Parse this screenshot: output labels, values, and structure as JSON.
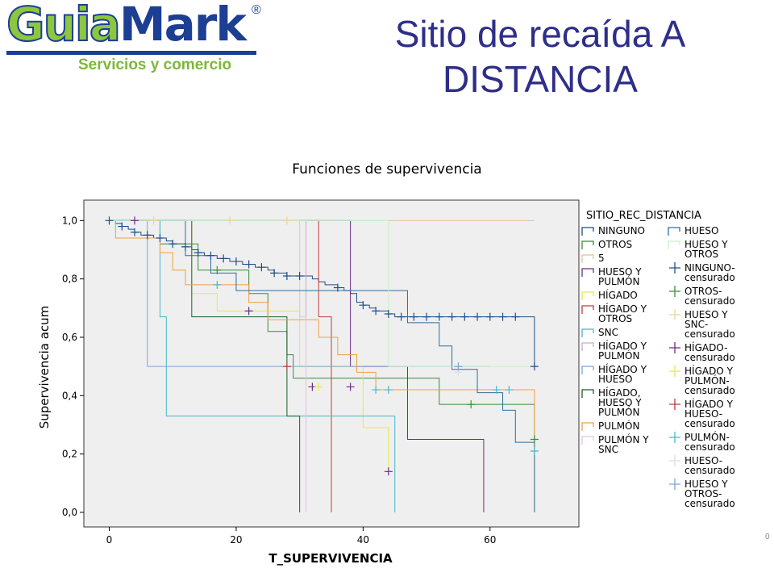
{
  "logo": {
    "text_a": "Guia",
    "text_b": "Mark",
    "registered": "®",
    "tagline": "Servicios y comercio"
  },
  "slide_title_line1": "Sitio de recaída A",
  "slide_title_line2": "DISTANCIA",
  "page_mark": "0",
  "chart_data": {
    "type": "line",
    "title": "Funciones de supervivencia",
    "xlabel": "T_SUPERVIVENCIA",
    "ylabel": "Supervivencia acum",
    "xlim": [
      -4,
      74
    ],
    "ylim": [
      -0.05,
      1.07
    ],
    "xticks": [
      0,
      20,
      40,
      60
    ],
    "yticks": [
      0.0,
      0.2,
      0.4,
      0.6,
      0.8,
      1.0
    ],
    "ytick_labels": [
      "0,0",
      "0,2",
      "0,4",
      "0,6",
      "0,8",
      "1,0"
    ],
    "grid": false,
    "legend_title": "SITIO_REC_DISTANCIA",
    "legend_position": "right",
    "series": [
      {
        "name": "NINGUNO",
        "color": "#1f4e8c",
        "width": 1,
        "steps": [
          [
            0,
            1.0
          ],
          [
            1,
            0.99
          ],
          [
            2,
            0.98
          ],
          [
            3,
            0.97
          ],
          [
            4,
            0.96
          ],
          [
            5,
            0.95
          ],
          [
            6,
            0.95
          ],
          [
            7,
            0.94
          ],
          [
            8,
            0.94
          ],
          [
            9,
            0.93
          ],
          [
            10,
            0.92
          ],
          [
            11,
            0.92
          ],
          [
            12,
            0.91
          ],
          [
            13,
            0.9
          ],
          [
            14,
            0.89
          ],
          [
            15,
            0.88
          ],
          [
            16,
            0.88
          ],
          [
            17,
            0.87
          ],
          [
            18,
            0.87
          ],
          [
            19,
            0.86
          ],
          [
            20,
            0.86
          ],
          [
            21,
            0.85
          ],
          [
            22,
            0.85
          ],
          [
            23,
            0.84
          ],
          [
            24,
            0.84
          ],
          [
            25,
            0.83
          ],
          [
            26,
            0.82
          ],
          [
            27,
            0.82
          ],
          [
            28,
            0.81
          ],
          [
            30,
            0.81
          ],
          [
            32,
            0.8
          ],
          [
            33,
            0.79
          ],
          [
            34,
            0.78
          ],
          [
            35,
            0.78
          ],
          [
            36,
            0.77
          ],
          [
            37,
            0.76
          ],
          [
            38,
            0.75
          ],
          [
            39,
            0.72
          ],
          [
            40,
            0.71
          ],
          [
            41,
            0.7
          ],
          [
            42,
            0.69
          ],
          [
            44,
            0.68
          ],
          [
            45,
            0.67
          ],
          [
            67,
            0.67
          ],
          [
            67,
            0.5
          ]
        ],
        "end": 67
      },
      {
        "name": "OTROS",
        "color": "#3b8c3b",
        "width": 1,
        "steps": [
          [
            0,
            1.0
          ],
          [
            8,
            0.92
          ],
          [
            14,
            0.83
          ],
          [
            22,
            0.75
          ],
          [
            25,
            0.62
          ],
          [
            28,
            0.54
          ],
          [
            29,
            0.46
          ],
          [
            52,
            0.37
          ],
          [
            67,
            0.25
          ]
        ],
        "end": 67
      },
      {
        "name": "5",
        "color": "#dcc3a0",
        "width": 1,
        "steps": [
          [
            0,
            1.0
          ]
        ],
        "end": 67
      },
      {
        "name": "HUESO Y PULMÓN",
        "color": "#6a2c85",
        "width": 1,
        "steps": [
          [
            0,
            1.0
          ],
          [
            38,
            0.5
          ],
          [
            47,
            0.25
          ],
          [
            59,
            0.0
          ]
        ],
        "end": 59
      },
      {
        "name": "HÍGADO",
        "color": "#e8e84a",
        "width": 1,
        "steps": [
          [
            0,
            1.0
          ],
          [
            13,
            0.75
          ],
          [
            17,
            0.69
          ],
          [
            30,
            0.5
          ],
          [
            40,
            0.29
          ],
          [
            44,
            0.14
          ]
        ],
        "end": 44
      },
      {
        "name": "HÍGADO Y OTROS",
        "color": "#c43a3a",
        "width": 1,
        "steps": [
          [
            0,
            1.0
          ],
          [
            33,
            0.67
          ],
          [
            35,
            0.0
          ]
        ],
        "end": 35
      },
      {
        "name": "SNC",
        "color": "#49b8c8",
        "width": 1,
        "steps": [
          [
            0,
            1.0
          ],
          [
            8,
            0.67
          ],
          [
            9,
            0.33
          ],
          [
            45,
            0.0
          ]
        ],
        "end": 45
      },
      {
        "name": "HÍGADO Y PULMÓN",
        "color": "#c8a8c8",
        "width": 1,
        "steps": [
          [
            0,
            1.0
          ],
          [
            31,
            0.0
          ]
        ],
        "end": 31
      },
      {
        "name": "HÍGADO Y HUESO",
        "color": "#7aa3d8",
        "width": 1,
        "steps": [
          [
            0,
            1.0
          ],
          [
            6,
            0.5
          ],
          [
            60,
            0.5
          ]
        ],
        "end": 60
      },
      {
        "name": "HÍGADO, HUESO Y PULMÓN",
        "color": "#1b5e2a",
        "width": 1,
        "steps": [
          [
            0,
            1.0
          ],
          [
            13,
            0.67
          ],
          [
            28,
            0.33
          ],
          [
            30,
            0.0
          ]
        ],
        "end": 30
      },
      {
        "name": "PULMÓN",
        "color": "#f0a040",
        "width": 1,
        "steps": [
          [
            0,
            1.0
          ],
          [
            1,
            0.94
          ],
          [
            8,
            0.89
          ],
          [
            10,
            0.83
          ],
          [
            12,
            0.78
          ],
          [
            22,
            0.72
          ],
          [
            25,
            0.66
          ],
          [
            33,
            0.6
          ],
          [
            36,
            0.54
          ],
          [
            39,
            0.48
          ],
          [
            42,
            0.42
          ],
          [
            67,
            0.42
          ],
          [
            67,
            0.0
          ]
        ],
        "end": 67
      },
      {
        "name": "PULMÓN Y SNC",
        "color": "#e0c4e0",
        "width": 1,
        "steps": [
          [
            0,
            1.0
          ],
          [
            30,
            0.67
          ],
          [
            31,
            0.0
          ]
        ],
        "end": 31
      },
      {
        "name": "HUESO",
        "color": "#2e6ea0",
        "width": 1,
        "steps": [
          [
            0,
            1.0
          ],
          [
            12,
            0.88
          ],
          [
            16,
            0.82
          ],
          [
            20,
            0.76
          ],
          [
            47,
            0.65
          ],
          [
            52,
            0.57
          ],
          [
            54,
            0.49
          ],
          [
            58,
            0.41
          ],
          [
            62,
            0.35
          ],
          [
            64,
            0.24
          ],
          [
            67,
            0.24
          ],
          [
            67,
            0.0
          ]
        ],
        "end": 67
      },
      {
        "name": "HUESO Y OTROS",
        "color": "#c8f0c8",
        "width": 1,
        "steps": [
          [
            0,
            1.0
          ],
          [
            44,
            1.0
          ],
          [
            44,
            0.5
          ],
          [
            67,
            0.5
          ]
        ],
        "end": 67
      }
    ],
    "censored": [
      {
        "name": "NINGUNO-censurado",
        "color": "#1f4e8c",
        "points": [
          [
            0,
            1.0
          ],
          [
            2,
            0.98
          ],
          [
            4,
            0.96
          ],
          [
            6,
            0.95
          ],
          [
            8,
            0.94
          ],
          [
            10,
            0.92
          ],
          [
            12,
            0.91
          ],
          [
            14,
            0.89
          ],
          [
            16,
            0.88
          ],
          [
            18,
            0.87
          ],
          [
            20,
            0.86
          ],
          [
            22,
            0.85
          ],
          [
            24,
            0.84
          ],
          [
            26,
            0.82
          ],
          [
            28,
            0.81
          ],
          [
            30,
            0.81
          ],
          [
            36,
            0.77
          ],
          [
            40,
            0.71
          ],
          [
            42,
            0.69
          ],
          [
            44,
            0.68
          ],
          [
            46,
            0.67
          ],
          [
            48,
            0.67
          ],
          [
            50,
            0.67
          ],
          [
            52,
            0.67
          ],
          [
            54,
            0.67
          ],
          [
            56,
            0.67
          ],
          [
            58,
            0.67
          ],
          [
            60,
            0.67
          ],
          [
            62,
            0.67
          ],
          [
            64,
            0.67
          ],
          [
            67,
            0.5
          ]
        ]
      },
      {
        "name": "OTROS-censurado",
        "color": "#3b8c3b",
        "points": [
          [
            17,
            0.83
          ],
          [
            57,
            0.37
          ],
          [
            67,
            0.25
          ]
        ]
      },
      {
        "name": "HUESO Y SNC-censurado",
        "color": "#e8d89a",
        "points": [
          [
            7,
            1.0
          ],
          [
            19,
            1.0
          ],
          [
            28,
            1.0
          ]
        ]
      },
      {
        "name": "HÍGADO-censurado",
        "color": "#6a2c85",
        "points": [
          [
            4,
            1.0
          ],
          [
            22,
            0.69
          ],
          [
            32,
            0.43
          ],
          [
            38,
            0.43
          ],
          [
            44,
            0.14
          ]
        ]
      },
      {
        "name": "HÍGADO Y PULMÓN-censurado",
        "color": "#e8e84a",
        "points": [
          [
            33,
            0.43
          ]
        ]
      },
      {
        "name": "HÍGADO Y HUESO-censurado",
        "color": "#c43a3a",
        "points": [
          [
            28,
            0.5
          ]
        ]
      },
      {
        "name": "PULMÓN-censurado",
        "color": "#49b8c8",
        "points": [
          [
            17,
            0.78
          ],
          [
            42,
            0.42
          ],
          [
            44,
            0.42
          ],
          [
            61,
            0.42
          ],
          [
            63,
            0.42
          ],
          [
            67,
            0.21
          ]
        ]
      },
      {
        "name": "HUESO-censurado",
        "color": "#dddddd",
        "points": [
          [
            55,
            0.48
          ]
        ]
      },
      {
        "name": "HUESO Y OTROS-censurado",
        "color": "#7aa3d8",
        "points": [
          [
            55,
            0.5
          ]
        ]
      }
    ],
    "legend_left": [
      {
        "label": "NINGUNO",
        "color": "#1f4e8c"
      },
      {
        "label": "OTROS",
        "color": "#3b8c3b"
      },
      {
        "label": "5",
        "color": "#dcc3a0"
      },
      {
        "label": "HUESO Y PULMÓN",
        "color": "#6a2c85"
      },
      {
        "label": "HÍGADO",
        "color": "#e8e84a"
      },
      {
        "label": "HÍGADO Y OTROS",
        "color": "#c43a3a"
      },
      {
        "label": "SNC",
        "color": "#49b8c8"
      },
      {
        "label": "HÍGADO Y PULMÓN",
        "color": "#c8a8c8"
      },
      {
        "label": "HÍGADO Y HUESO",
        "color": "#7aa3d8"
      },
      {
        "label": "HÍGADO, HUESO Y PULMÓN",
        "color": "#1b5e2a"
      },
      {
        "label": "PULMÓN",
        "color": "#f0a040"
      },
      {
        "label": "PULMÓN Y SNC",
        "color": "#e0c4e0"
      }
    ],
    "legend_right": [
      {
        "label": "HUESO",
        "color": "#2e6ea0",
        "marker": "step"
      },
      {
        "label": "HUESO Y OTROS",
        "color": "#c8f0c8",
        "marker": "step"
      },
      {
        "label": "NINGUNO-censurado",
        "color": "#1f4e8c",
        "marker": "plus"
      },
      {
        "label": "OTROS-censurado",
        "color": "#3b8c3b",
        "marker": "plus"
      },
      {
        "label": "HUESO Y SNC-censurado",
        "color": "#e8d89a",
        "marker": "plus"
      },
      {
        "label": "HÍGADO-censurado",
        "color": "#6a2c85",
        "marker": "plus"
      },
      {
        "label": "HÍGADO Y PULMÓN-censurado",
        "color": "#e8e84a",
        "marker": "plus"
      },
      {
        "label": "HÍGADO Y HUESO-censurado",
        "color": "#c43a3a",
        "marker": "plus"
      },
      {
        "label": "PULMÓN-censurado",
        "color": "#49b8c8",
        "marker": "plus"
      },
      {
        "label": "HUESO-censurado",
        "color": "#dddddd",
        "marker": "plus"
      },
      {
        "label": "HUESO Y OTROS-censurado",
        "color": "#7aa3d8",
        "marker": "plus"
      }
    ]
  }
}
